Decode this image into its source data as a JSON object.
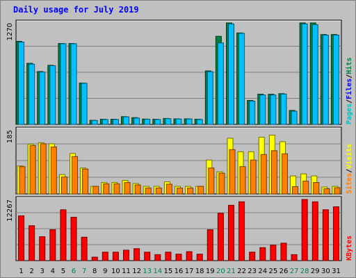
{
  "chart_data": {
    "title": "Daily usage for July 2019",
    "type": "bar",
    "categories": [
      "1",
      "2",
      "3",
      "4",
      "5",
      "6",
      "7",
      "8",
      "9",
      "10",
      "11",
      "12",
      "13",
      "14",
      "15",
      "16",
      "17",
      "18",
      "19",
      "20",
      "21",
      "22",
      "23",
      "24",
      "25",
      "26",
      "27",
      "28",
      "29",
      "30",
      "31"
    ],
    "weekend_days": [
      "6",
      "7",
      "13",
      "14",
      "20",
      "21",
      "27",
      "28"
    ],
    "colors": {
      "hits": "#008040",
      "files": "#00c0ff",
      "pages": "#00ffff",
      "visits": "#ffff00",
      "sites": "#ff8000",
      "kbytes": "#ff0000",
      "weekday_label": "#000000",
      "weekend_label": "#00805c",
      "title": "#0000ff",
      "background": "#c0c0c0",
      "plot": "#c0c0c0",
      "gridline": "#808080"
    },
    "panels": [
      {
        "id": "hits-files-pages",
        "ymax_label": "1270",
        "ymax": 1270,
        "legend": [
          {
            "label": "Pages",
            "color": "#00c0c0"
          },
          {
            "label": "Files",
            "color": "#0000ff"
          },
          {
            "label": "Hits",
            "color": "#008040"
          }
        ],
        "series": [
          {
            "name": "Hits",
            "color": "#008040",
            "values": [
              1040,
              765,
              662,
              740,
              1013,
              1013,
              518,
              52,
              65,
              65,
              98,
              85,
              67,
              65,
              75,
              70,
              70,
              65,
              670,
              1103,
              1270,
              1145,
              300,
              378,
              378,
              385,
              175,
              1270,
              1270,
              1125,
              1125
            ]
          },
          {
            "name": "Files",
            "color": "#00c0ff",
            "values": [
              1030,
              755,
              655,
              735,
              1010,
              1010,
              515,
              50,
              62,
              62,
              95,
              80,
              65,
              62,
              72,
              68,
              68,
              62,
              660,
              1020,
              1258,
              1140,
              292,
              368,
              368,
              380,
              165,
              1258,
              1248,
              1118,
              1118
            ]
          },
          {
            "name": "Pages",
            "color": "#00ffff",
            "values": [
              0,
              0,
              0,
              0,
              0,
              0,
              0,
              0,
              0,
              0,
              0,
              0,
              0,
              0,
              0,
              0,
              0,
              0,
              0,
              0,
              0,
              0,
              0,
              0,
              0,
              0,
              0,
              0,
              0,
              0,
              0
            ]
          }
        ]
      },
      {
        "id": "visits-sites",
        "ymax_label": "185",
        "ymax": 185,
        "legend": [
          {
            "label": "Sites",
            "color": "#ff8000"
          },
          {
            "label": "Visits",
            "color": "#ffff00"
          }
        ],
        "series": [
          {
            "name": "Visits",
            "color": "#ffff00",
            "values": [
              81,
              144,
              148,
              145,
              56,
              117,
              75,
              22,
              33,
              33,
              39,
              30,
              22,
              22,
              35,
              22,
              22,
              22,
              98,
              64,
              161,
              122,
              122,
              164,
              170,
              151,
              52,
              58,
              52,
              20,
              22
            ]
          },
          {
            "name": "Sites",
            "color": "#ff8000",
            "values": [
              79,
              140,
              145,
              136,
              49,
              108,
              72,
              22,
              29,
              29,
              33,
              26,
              17,
              17,
              28,
              17,
              17,
              22,
              75,
              60,
              128,
              79,
              98,
              114,
              125,
              116,
              21,
              37,
              33,
              15,
              18
            ]
          }
        ]
      },
      {
        "id": "kbytes",
        "ymax_label": "12267",
        "ymax": 12267,
        "legend": [
          {
            "label": "KBytes",
            "color": "#ff0000"
          }
        ],
        "series": [
          {
            "name": "KBytes",
            "color": "#ff0000",
            "values": [
              8990,
              7000,
              4800,
              6200,
              10200,
              8700,
              4700,
              700,
              1700,
              1700,
              2100,
              2400,
              1700,
              1200,
              1700,
              1300,
              1800,
              1300,
              6200,
              9500,
              11100,
              11800,
              1700,
              2600,
              3100,
              3500,
              1200,
              12267,
              11800,
              10200,
              10800
            ]
          }
        ]
      }
    ]
  }
}
